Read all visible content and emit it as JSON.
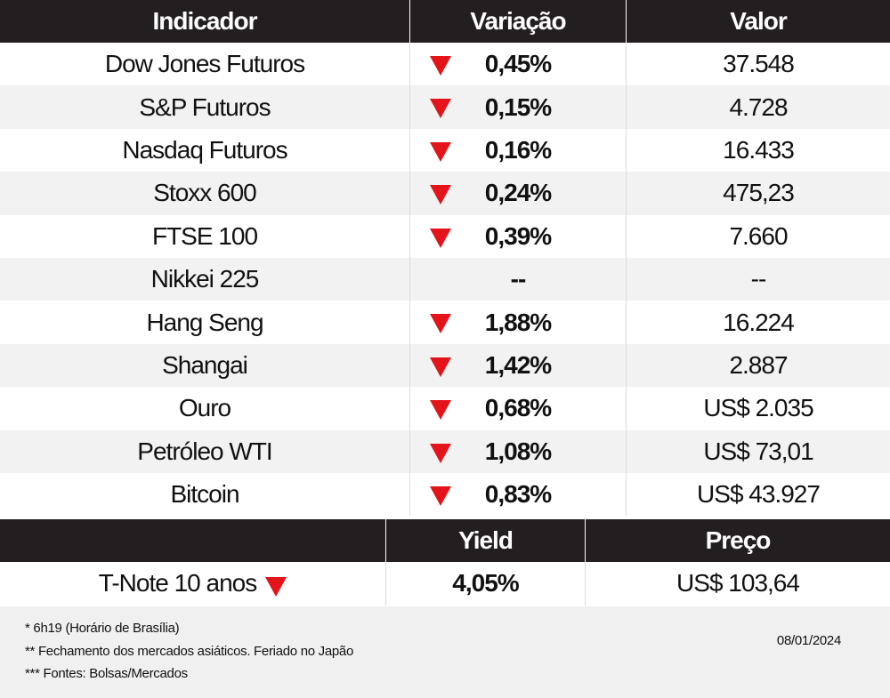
{
  "table": {
    "header": [
      "Indicador",
      "Variação",
      "Valor"
    ],
    "rows": [
      [
        "Dow Jones Futuros",
        "0,45%",
        "37.548"
      ],
      [
        "S&P Futuros",
        "0,15%",
        "4.728"
      ],
      [
        "Nasdaq Futuros",
        "0,16%",
        "16.433"
      ],
      [
        "Stoxx 600",
        "0,24%",
        "475,23"
      ],
      [
        "FTSE 100",
        "0,39%",
        "7.660"
      ],
      [
        "Nikkei 225",
        "--",
        "--"
      ],
      [
        "Hang Seng",
        "1,88%",
        "16.224"
      ],
      [
        "Shangai",
        "1,42%",
        "2.887"
      ],
      [
        "Ouro",
        "0,68%",
        "US$ 2.035"
      ],
      [
        "Petróleo WTI",
        "1,08%",
        "US$ 73,01"
      ],
      [
        "Bitcoin",
        "0,83%",
        "US$ 43.927"
      ]
    ]
  },
  "bond_table": {
    "header": [
      "Yield",
      "Preço"
    ],
    "row": [
      "T-Note 10 anos",
      "4,05%",
      "US$ 103,64"
    ]
  },
  "footer": {
    "notes": [
      "* 6h19 (Horário de Brasília)",
      "** Fechamento dos mercados asiáticos. Feriado no Japão",
      "*** Fontes: Bolsas/Mercados"
    ],
    "date": "08/01/2024"
  }
}
